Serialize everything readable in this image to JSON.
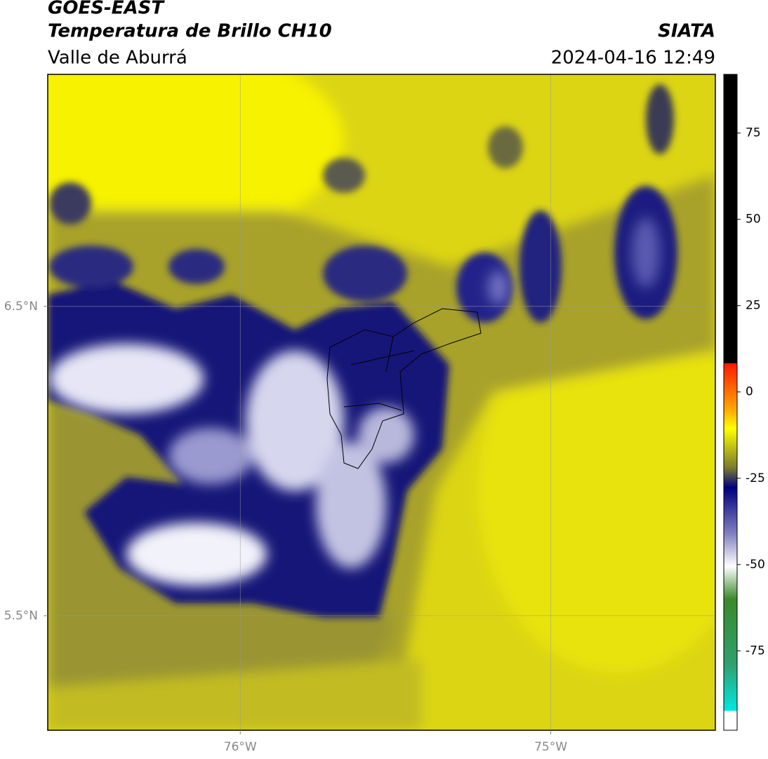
{
  "header": {
    "title": "GOES-EAST",
    "subtitle": "Temperatura de Brillo CH10",
    "region": "Valle de Aburrá",
    "source": "SIATA",
    "datetime": "2024-04-16 12:49"
  },
  "map": {
    "xlim": [
      -76.62,
      -74.47
    ],
    "ylim": [
      5.13,
      7.25
    ],
    "lon_ticks": [
      {
        "value": -76,
        "label": "76°W"
      },
      {
        "value": -75,
        "label": "75°W"
      }
    ],
    "lat_ticks": [
      {
        "value": 6.5,
        "label": "6.5°N"
      },
      {
        "value": 5.5,
        "label": "5.5°N"
      }
    ]
  },
  "colorbar": {
    "lim": [
      -98,
      92
    ],
    "ticks": [
      75,
      50,
      25,
      0,
      -25,
      -50,
      -75
    ]
  }
}
